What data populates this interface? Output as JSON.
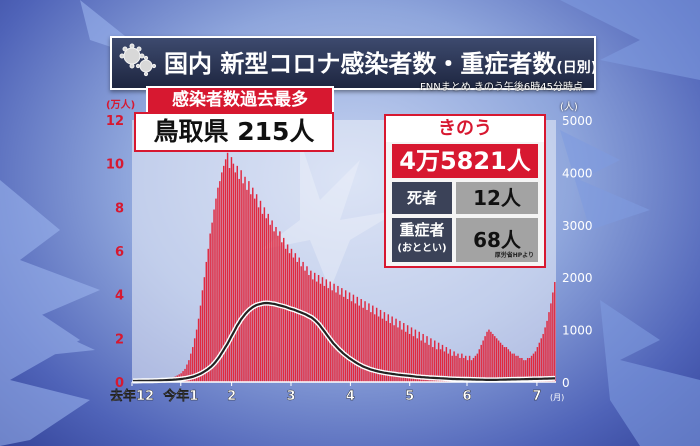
{
  "title": {
    "main": "国内 新型コロナ感染者数・重症者数",
    "sub": "(日別)"
  },
  "source_note": "FNNまとめ きのう午後6時45分時点",
  "record": {
    "header": "感染者数過去最多",
    "text": "鳥取県 215人"
  },
  "yesterday": {
    "header": "きのう",
    "cases": "4万5821人",
    "deaths_label": "死者",
    "deaths_value": "12人",
    "severe_label": "重症者",
    "severe_sub": "(おととい)",
    "severe_value": "68人",
    "severe_note": "厚労省HPより"
  },
  "colors": {
    "bar": "#e0283f",
    "line": "#222222",
    "accent": "#d71830"
  },
  "chart_data": {
    "type": "bar",
    "series": [
      {
        "name": "感染者数",
        "axis": "left",
        "unit": "万人",
        "values": [
          0.01,
          0.01,
          0.01,
          0.02,
          0.02,
          0.02,
          0.03,
          0.03,
          0.04,
          0.05,
          0.06,
          0.07,
          0.08,
          0.09,
          0.1,
          0.12,
          0.13,
          0.15,
          0.17,
          0.19,
          0.2,
          0.22,
          0.25,
          0.3,
          0.35,
          0.4,
          0.5,
          0.6,
          0.8,
          1.0,
          1.3,
          1.6,
          2.0,
          2.4,
          2.9,
          3.5,
          4.2,
          4.8,
          5.5,
          6.1,
          6.8,
          7.3,
          7.9,
          8.4,
          8.9,
          9.2,
          9.6,
          9.9,
          10.2,
          10.5,
          9.8,
          10.3,
          10.0,
          9.6,
          9.9,
          9.3,
          9.7,
          9.1,
          9.4,
          8.8,
          9.2,
          8.6,
          8.9,
          8.4,
          8.6,
          8.0,
          8.3,
          7.7,
          8.0,
          7.5,
          7.7,
          7.2,
          7.4,
          6.9,
          7.1,
          6.7,
          6.9,
          6.4,
          6.6,
          6.1,
          6.3,
          5.9,
          6.1,
          5.7,
          5.9,
          5.5,
          5.7,
          5.3,
          5.5,
          5.1,
          5.3,
          4.9,
          5.1,
          4.7,
          5.0,
          4.6,
          4.9,
          4.5,
          4.8,
          4.4,
          4.7,
          4.3,
          4.6,
          4.2,
          4.5,
          4.1,
          4.4,
          4.0,
          4.3,
          3.9,
          4.2,
          3.8,
          4.1,
          3.7,
          4.0,
          3.6,
          3.9,
          3.5,
          3.8,
          3.4,
          3.7,
          3.3,
          3.6,
          3.2,
          3.5,
          3.1,
          3.4,
          3.0,
          3.3,
          2.9,
          3.2,
          2.8,
          3.1,
          2.7,
          3.0,
          2.6,
          2.9,
          2.5,
          2.8,
          2.4,
          2.7,
          2.3,
          2.6,
          2.2,
          2.5,
          2.1,
          2.4,
          2.0,
          2.3,
          1.9,
          2.2,
          1.8,
          2.1,
          1.7,
          2.0,
          1.6,
          1.9,
          1.5,
          1.8,
          1.5,
          1.7,
          1.4,
          1.6,
          1.3,
          1.5,
          1.2,
          1.4,
          1.2,
          1.3,
          1.1,
          1.3,
          1.1,
          1.2,
          1.0,
          1.2,
          1.0,
          1.1,
          1.2,
          1.3,
          1.5,
          1.7,
          1.9,
          2.1,
          2.3,
          2.4,
          2.3,
          2.2,
          2.1,
          2.0,
          1.9,
          1.8,
          1.7,
          1.6,
          1.6,
          1.5,
          1.4,
          1.3,
          1.3,
          1.2,
          1.2,
          1.1,
          1.1,
          1.0,
          1.0,
          1.1,
          1.1,
          1.2,
          1.3,
          1.4,
          1.6,
          1.8,
          2.0,
          2.2,
          2.5,
          2.8,
          3.2,
          3.6,
          4.1,
          4.58
        ]
      },
      {
        "name": "重症者数",
        "axis": "right",
        "unit": "人",
        "values": [
          20,
          20,
          20,
          21,
          21,
          22,
          22,
          23,
          23,
          24,
          25,
          26,
          27,
          28,
          30,
          32,
          34,
          36,
          38,
          40,
          42,
          45,
          48,
          52,
          56,
          60,
          65,
          70,
          78,
          86,
          95,
          105,
          120,
          135,
          150,
          170,
          190,
          215,
          240,
          270,
          300,
          340,
          380,
          430,
          480,
          540,
          600,
          660,
          720,
          790,
          860,
          930,
          1000,
          1070,
          1130,
          1190,
          1240,
          1290,
          1330,
          1370,
          1400,
          1430,
          1450,
          1470,
          1480,
          1490,
          1500,
          1505,
          1507,
          1505,
          1500,
          1495,
          1490,
          1480,
          1470,
          1460,
          1450,
          1440,
          1430,
          1415,
          1400,
          1390,
          1380,
          1365,
          1350,
          1335,
          1320,
          1305,
          1290,
          1270,
          1250,
          1230,
          1200,
          1170,
          1130,
          1090,
          1040,
          990,
          940,
          890,
          840,
          790,
          740,
          700,
          660,
          620,
          585,
          550,
          520,
          490,
          460,
          435,
          410,
          385,
          360,
          340,
          320,
          300,
          285,
          270,
          255,
          240,
          230,
          220,
          210,
          200,
          192,
          185,
          178,
          172,
          166,
          160,
          155,
          150,
          145,
          140,
          136,
          132,
          128,
          124,
          120,
          116,
          112,
          108,
          104,
          100,
          97,
          94,
          91,
          88,
          85,
          82,
          80,
          78,
          76,
          74,
          72,
          70,
          68,
          66,
          64,
          62,
          60,
          58,
          57,
          56,
          55,
          54,
          53,
          52,
          51,
          50,
          49,
          48,
          47,
          46,
          45,
          44,
          43,
          42,
          41,
          40,
          40,
          40,
          40,
          41,
          42,
          43,
          44,
          45,
          46,
          47,
          48,
          49,
          50,
          50,
          51,
          52,
          53,
          54,
          55,
          56,
          57,
          58,
          59,
          60,
          60,
          61,
          62,
          63,
          64,
          65,
          66,
          67,
          68,
          68
        ],
        "note": "series length differs from infected series; plotted against its own index range"
      }
    ],
    "x_tick_labels": [
      "去年12",
      "今年1",
      "2",
      "3",
      "4",
      "5",
      "6",
      "7"
    ],
    "x_tick_unit": "(月)",
    "y_left": {
      "label": "(万人)",
      "ticks": [
        "0",
        "2",
        "4",
        "6",
        "8",
        "10",
        "12"
      ],
      "range": [
        0,
        12
      ]
    },
    "y_right": {
      "label": "(人)",
      "ticks": [
        "0",
        "1000",
        "2000",
        "3000",
        "4000",
        "5000"
      ],
      "range": [
        0,
        5000
      ]
    },
    "grid": false,
    "legend": "none"
  }
}
